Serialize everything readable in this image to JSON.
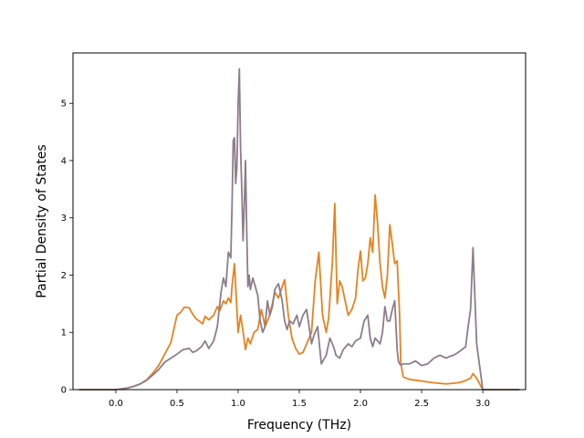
{
  "chart_data": {
    "type": "line",
    "title": "",
    "xlabel": "Frequency (THz)",
    "ylabel": "Partial Density of States",
    "xlim": [
      -0.35,
      3.35
    ],
    "ylim": [
      0,
      5.88
    ],
    "xticks": [
      0.0,
      0.5,
      1.0,
      1.5,
      2.0,
      2.5,
      3.0
    ],
    "xtick_labels": [
      "0.0",
      "0.5",
      "1.0",
      "1.5",
      "2.0",
      "2.5",
      "3.0"
    ],
    "yticks": [
      0,
      1,
      2,
      3,
      4,
      5
    ],
    "ytick_labels": [
      "0",
      "1",
      "2",
      "3",
      "4",
      "5"
    ],
    "grid": false,
    "legend": false,
    "series": [
      {
        "color": "#e8821e",
        "x": [
          -0.3,
          0.0,
          0.1,
          0.15,
          0.2,
          0.25,
          0.3,
          0.35,
          0.4,
          0.45,
          0.5,
          0.53,
          0.56,
          0.6,
          0.62,
          0.65,
          0.68,
          0.71,
          0.73,
          0.76,
          0.8,
          0.83,
          0.85,
          0.88,
          0.9,
          0.92,
          0.94,
          0.95,
          0.97,
          0.99,
          1.0,
          1.02,
          1.04,
          1.06,
          1.08,
          1.1,
          1.13,
          1.16,
          1.19,
          1.22,
          1.25,
          1.28,
          1.3,
          1.33,
          1.36,
          1.38,
          1.41,
          1.44,
          1.47,
          1.5,
          1.53,
          1.56,
          1.6,
          1.63,
          1.66,
          1.69,
          1.72,
          1.74,
          1.76,
          1.77,
          1.79,
          1.81,
          1.83,
          1.85,
          1.88,
          1.9,
          1.93,
          1.96,
          1.98,
          2.0,
          2.02,
          2.04,
          2.06,
          2.08,
          2.1,
          2.12,
          2.14,
          2.16,
          2.18,
          2.2,
          2.22,
          2.24,
          2.26,
          2.28,
          2.3,
          2.32,
          2.33,
          2.35,
          2.4,
          2.5,
          2.6,
          2.7,
          2.8,
          2.85,
          2.88,
          2.9,
          2.92,
          2.95,
          3.0,
          3.3
        ],
        "y": [
          0,
          0,
          0.03,
          0.06,
          0.1,
          0.17,
          0.28,
          0.42,
          0.62,
          0.82,
          1.3,
          1.35,
          1.44,
          1.43,
          1.35,
          1.25,
          1.2,
          1.15,
          1.28,
          1.22,
          1.3,
          1.45,
          1.38,
          1.55,
          1.5,
          1.6,
          1.52,
          1.8,
          2.2,
          1.4,
          1.0,
          1.3,
          1.02,
          0.7,
          0.9,
          0.8,
          1.0,
          1.05,
          1.4,
          1.1,
          1.25,
          1.5,
          1.7,
          1.6,
          1.8,
          1.92,
          1.3,
          0.9,
          0.72,
          0.62,
          0.65,
          0.8,
          1.0,
          1.9,
          2.4,
          1.3,
          1.0,
          1.25,
          1.9,
          2.2,
          3.25,
          1.5,
          1.9,
          1.8,
          1.5,
          1.3,
          1.4,
          1.6,
          2.1,
          2.42,
          1.9,
          1.95,
          2.2,
          2.65,
          2.4,
          3.4,
          2.9,
          2.2,
          1.8,
          1.6,
          2.0,
          2.88,
          2.55,
          2.2,
          2.25,
          1.3,
          0.45,
          0.22,
          0.18,
          0.15,
          0.12,
          0.1,
          0.12,
          0.15,
          0.18,
          0.2,
          0.28,
          0.2,
          0.0,
          0
        ]
      },
      {
        "color": "#8c7d8a",
        "x": [
          -0.3,
          0.0,
          0.1,
          0.15,
          0.2,
          0.25,
          0.3,
          0.35,
          0.4,
          0.45,
          0.5,
          0.55,
          0.6,
          0.63,
          0.66,
          0.7,
          0.73,
          0.76,
          0.8,
          0.83,
          0.86,
          0.88,
          0.9,
          0.92,
          0.94,
          0.95,
          0.96,
          0.97,
          0.98,
          0.99,
          1.0,
          1.01,
          1.02,
          1.03,
          1.04,
          1.05,
          1.06,
          1.07,
          1.08,
          1.09,
          1.1,
          1.12,
          1.14,
          1.16,
          1.18,
          1.2,
          1.22,
          1.24,
          1.26,
          1.28,
          1.3,
          1.33,
          1.36,
          1.38,
          1.4,
          1.42,
          1.45,
          1.48,
          1.5,
          1.53,
          1.56,
          1.6,
          1.62,
          1.65,
          1.68,
          1.72,
          1.75,
          1.78,
          1.8,
          1.83,
          1.86,
          1.9,
          1.93,
          1.96,
          2.0,
          2.03,
          2.06,
          2.08,
          2.1,
          2.12,
          2.14,
          2.16,
          2.18,
          2.2,
          2.22,
          2.24,
          2.26,
          2.28,
          2.3,
          2.31,
          2.32,
          2.33,
          2.35,
          2.4,
          2.45,
          2.5,
          2.55,
          2.6,
          2.65,
          2.7,
          2.73,
          2.76,
          2.8,
          2.83,
          2.86,
          2.88,
          2.9,
          2.92,
          2.95,
          3.0,
          3.3
        ],
        "y": [
          0,
          0,
          0.03,
          0.06,
          0.1,
          0.16,
          0.25,
          0.35,
          0.48,
          0.55,
          0.62,
          0.7,
          0.72,
          0.65,
          0.68,
          0.75,
          0.85,
          0.72,
          0.85,
          1.1,
          1.7,
          1.95,
          1.8,
          2.4,
          2.3,
          3.2,
          4.35,
          4.4,
          3.6,
          3.9,
          5.0,
          5.6,
          4.2,
          3.5,
          2.6,
          3.2,
          4.0,
          2.8,
          1.8,
          2.0,
          1.75,
          1.95,
          1.8,
          1.65,
          1.2,
          1.0,
          1.1,
          1.55,
          1.3,
          1.45,
          1.75,
          1.85,
          1.55,
          1.2,
          1.05,
          1.2,
          1.15,
          1.3,
          1.1,
          1.3,
          1.4,
          0.8,
          0.95,
          1.1,
          0.45,
          0.6,
          0.9,
          0.75,
          0.6,
          0.55,
          0.7,
          0.8,
          0.75,
          0.85,
          0.9,
          1.2,
          1.3,
          0.9,
          0.75,
          0.9,
          0.85,
          0.8,
          1.0,
          1.45,
          1.2,
          1.2,
          1.4,
          1.55,
          0.7,
          0.5,
          0.45,
          0.43,
          0.45,
          0.45,
          0.5,
          0.42,
          0.45,
          0.55,
          0.6,
          0.55,
          0.58,
          0.6,
          0.65,
          0.7,
          0.75,
          1.1,
          1.4,
          2.48,
          0.8,
          0.0,
          0
        ]
      }
    ]
  }
}
